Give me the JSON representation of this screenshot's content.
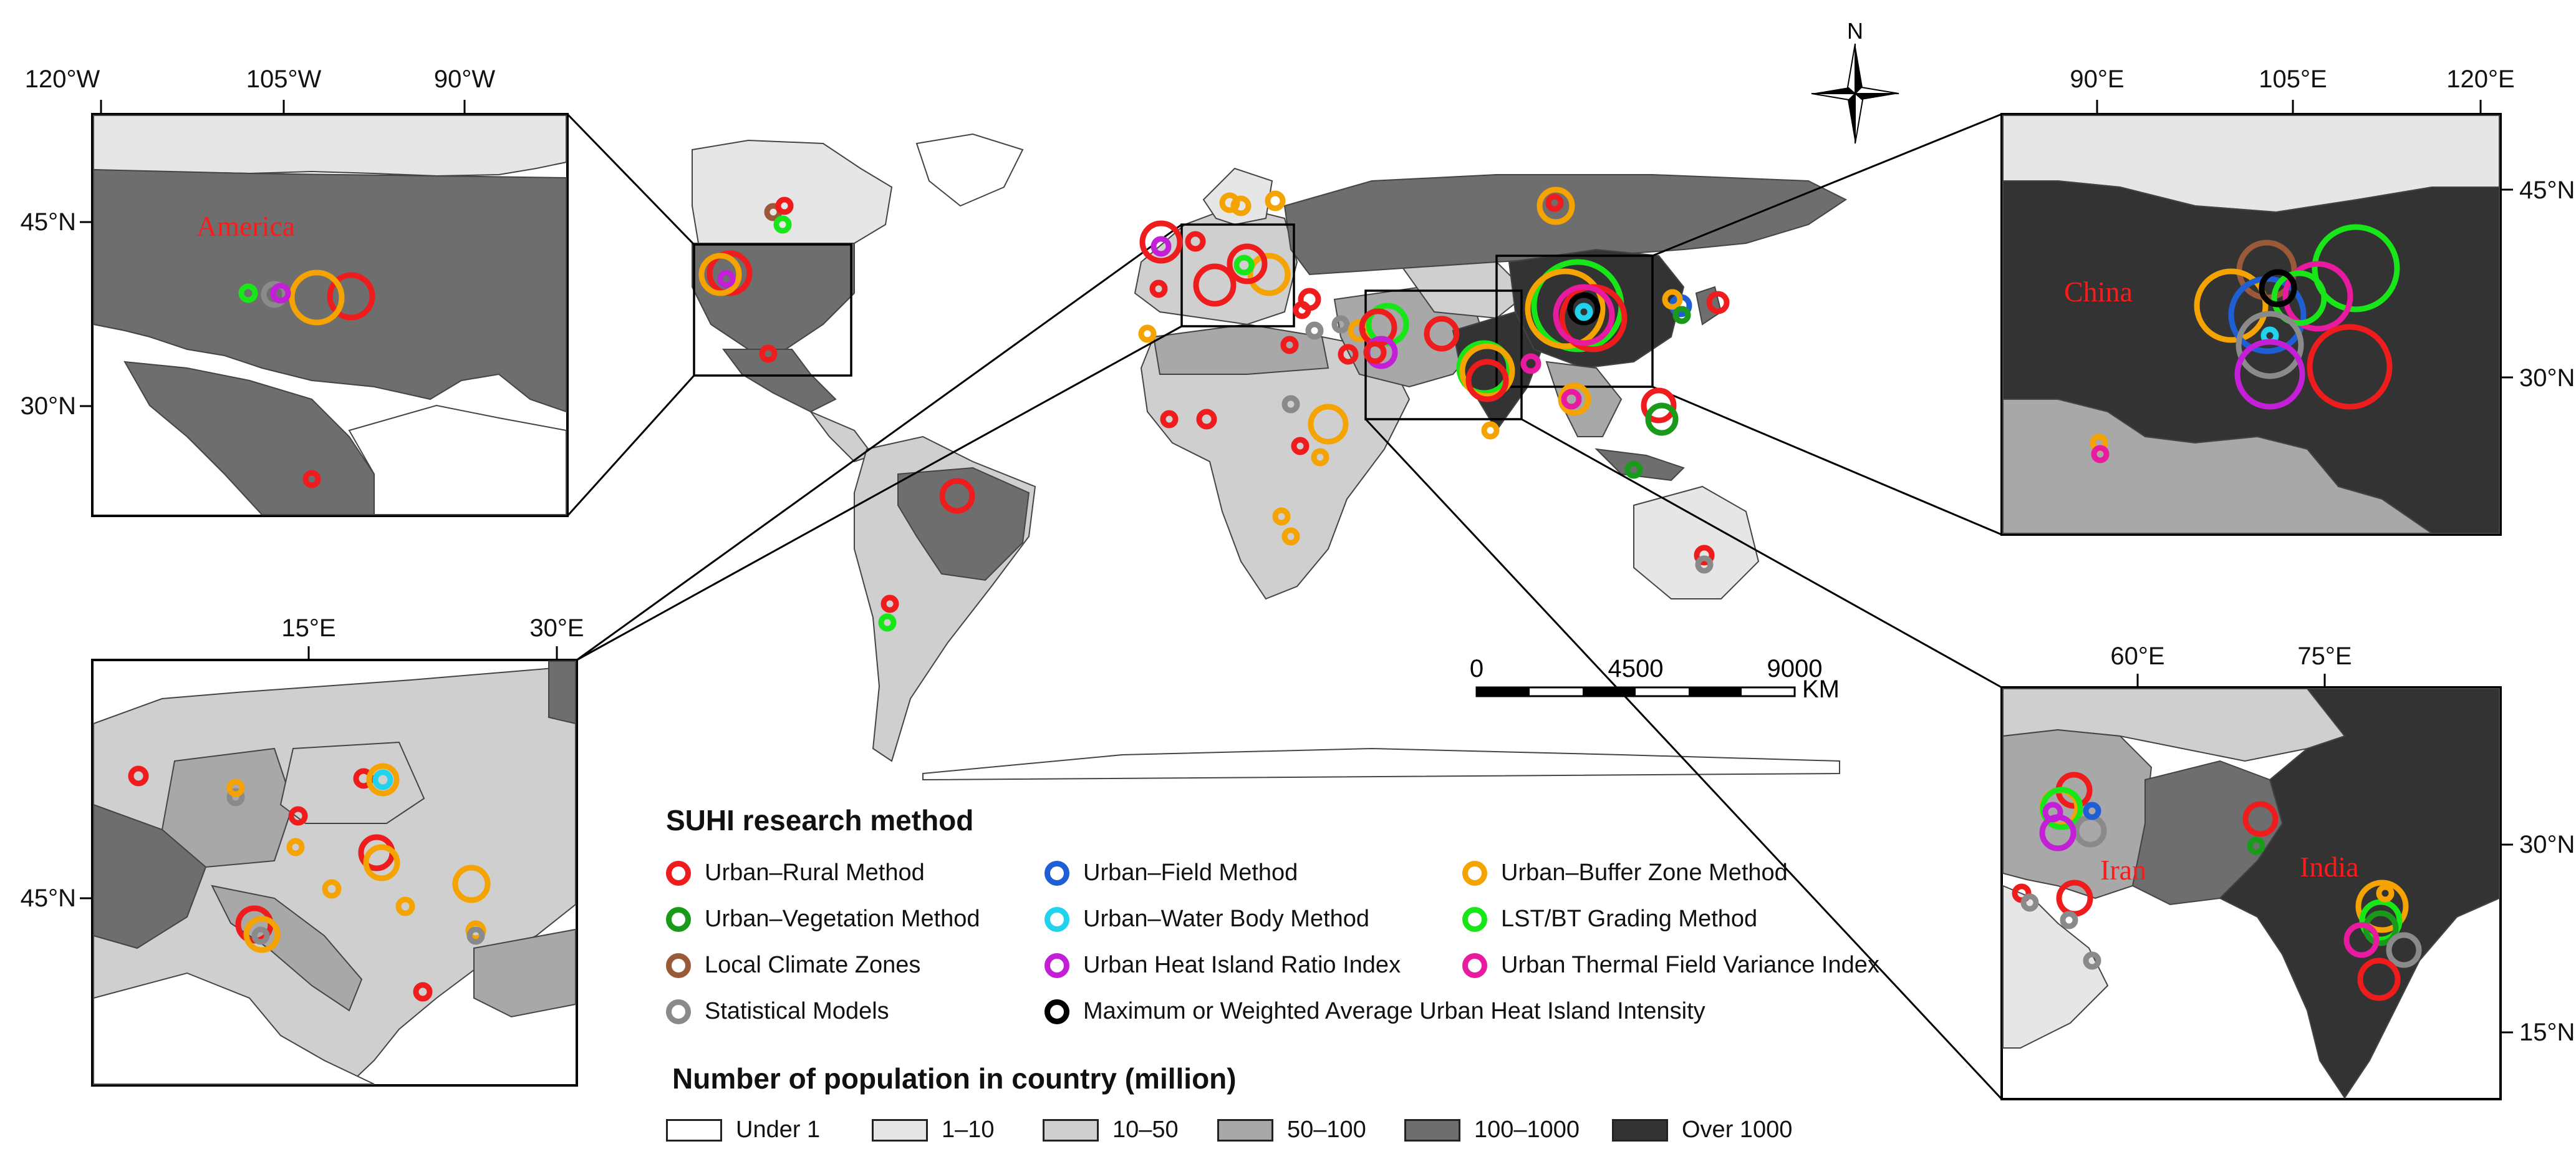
{
  "compass": {
    "label": "N"
  },
  "scale_bar": {
    "labels": [
      "0",
      "4500",
      "9000"
    ],
    "unit": "KM"
  },
  "insets": {
    "america": {
      "country_label": "America",
      "top_ticks": [
        "120°W",
        "105°W",
        "90°W"
      ],
      "left_ticks": [
        "45°N",
        "30°N"
      ]
    },
    "europe": {
      "top_ticks": [
        "15°E",
        "30°E"
      ],
      "left_ticks": [
        "45°N"
      ]
    },
    "china": {
      "country_label": "China",
      "top_ticks": [
        "90°E",
        "105°E",
        "120°E"
      ],
      "right_ticks": [
        "45°N",
        "30°N"
      ]
    },
    "india": {
      "labels": [
        "Iran",
        "India"
      ],
      "top_ticks": [
        "60°E",
        "75°E"
      ],
      "right_ticks": [
        "30°N",
        "15°N"
      ]
    }
  },
  "method_legend": {
    "title": "SUHI research method",
    "items": [
      {
        "label": "Urban–Rural Method",
        "color": "#ee1c1c"
      },
      {
        "label": "Urban–Field Method",
        "color": "#1f5fd6"
      },
      {
        "label": "Urban–Buffer Zone Method",
        "color": "#f5a300"
      },
      {
        "label": "Urban–Vegetation Method",
        "color": "#1a9a1a"
      },
      {
        "label": "Urban–Water Body Method",
        "color": "#22d3ee"
      },
      {
        "label": "LST/BT Grading Method",
        "color": "#19e619"
      },
      {
        "label": "Local Climate Zones",
        "color": "#9a5a3a"
      },
      {
        "label": "Urban Heat Island Ratio Index",
        "color": "#c21fd6"
      },
      {
        "label": "Urban Thermal Field Variance Index",
        "color": "#e81aa0"
      },
      {
        "label": "Statistical Models",
        "color": "#8a8a8a"
      },
      {
        "label": "Maximum or Weighted Average Urban Heat Island Intensity",
        "color": "#000000"
      }
    ]
  },
  "population_legend": {
    "title": "Number of population in country (million)",
    "items": [
      {
        "label": "Under 1",
        "color": "#ffffff"
      },
      {
        "label": "1–10",
        "color": "#e6e6e6"
      },
      {
        "label": "10–50",
        "color": "#cfcfcf"
      },
      {
        "label": "50–100",
        "color": "#a8a8a8"
      },
      {
        "label": "100–1000",
        "color": "#6e6e6e"
      },
      {
        "label": "Over 1000",
        "color": "#333333"
      }
    ]
  }
}
